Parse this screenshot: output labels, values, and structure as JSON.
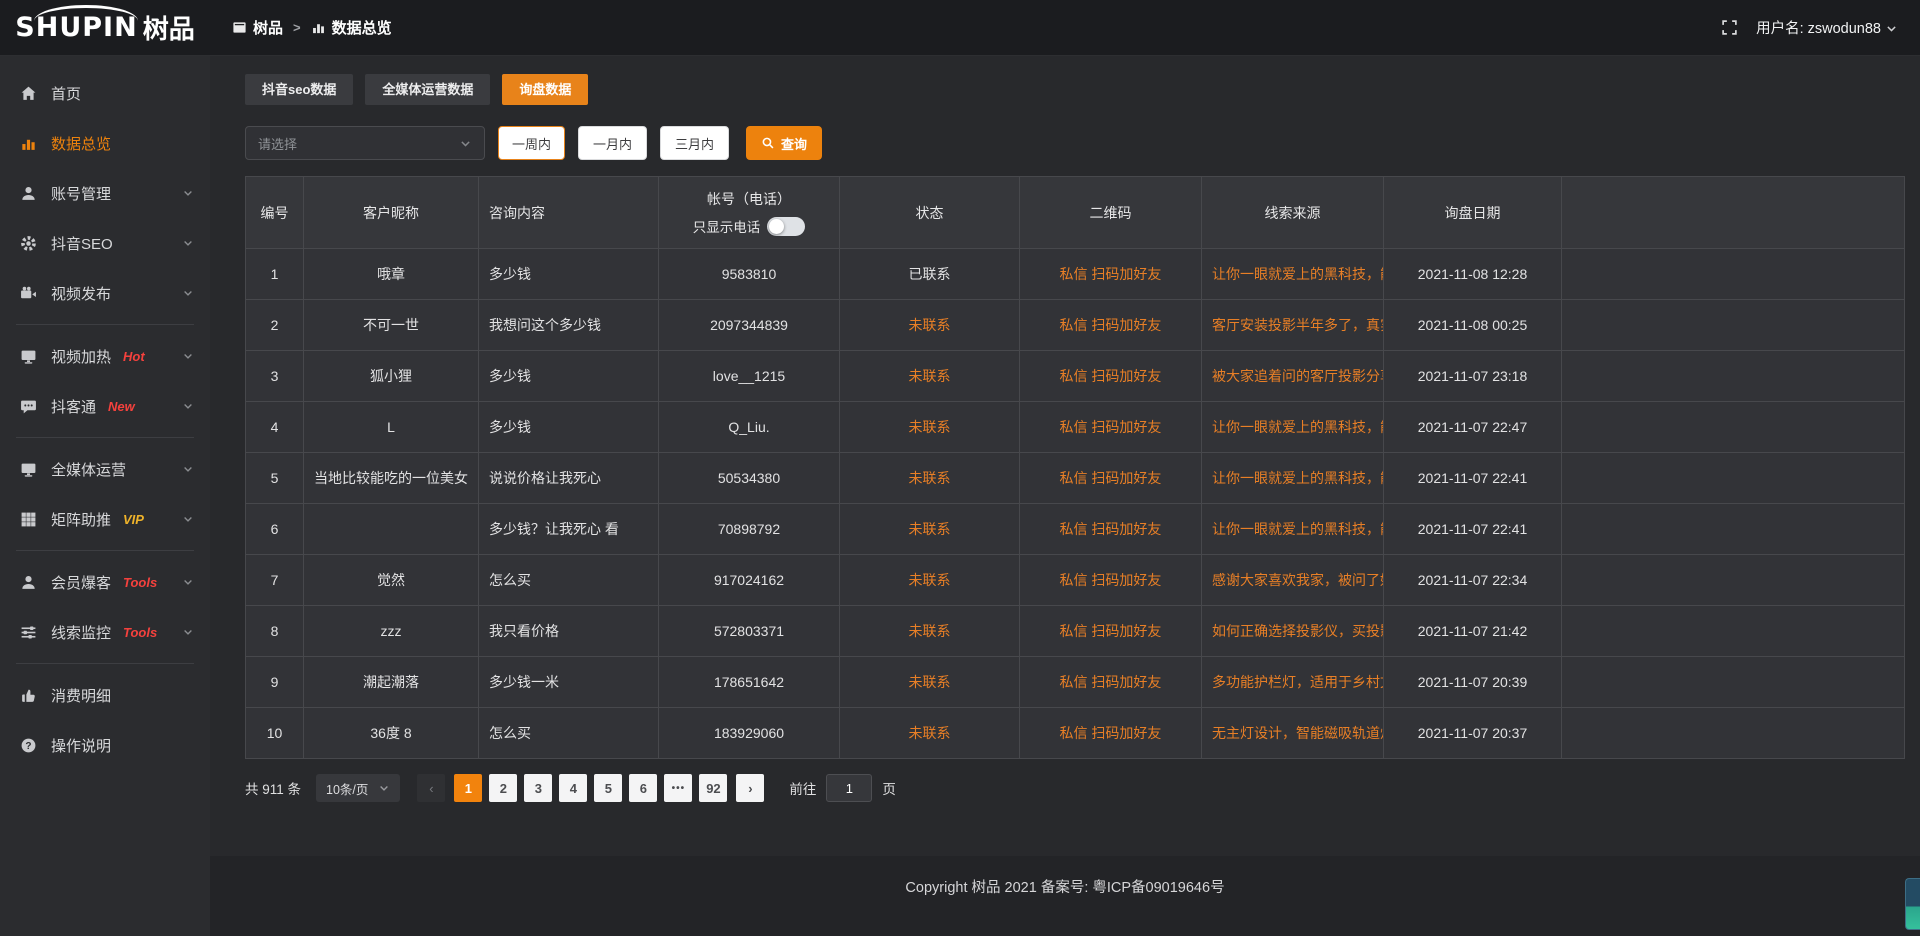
{
  "colors": {
    "accent_orange": "#ed820d",
    "tab_active_orange": "#e8831a",
    "link_orange": "#e87f26",
    "badge_red": "#f5413d",
    "badge_gold": "#efb32a",
    "page_bg": "#28292c",
    "topbar_bg": "#1b1c1f",
    "table_row_bg": "#323337"
  },
  "topbar": {
    "logo_en": "SHUPIN",
    "logo_cn": "树品",
    "breadcrumb": [
      {
        "label": "树品"
      },
      {
        "label": "数据总览"
      }
    ],
    "breadcrumb_separator": ">",
    "username": "用户名: zswodun88"
  },
  "sidebar": {
    "items": [
      {
        "label": "首页"
      },
      {
        "label": "数据总览"
      },
      {
        "label": "账号管理"
      },
      {
        "label": "抖音SEO"
      },
      {
        "label": "视频发布"
      },
      {
        "label": "视频加热",
        "badge": "Hot"
      },
      {
        "label": "抖客通",
        "badge": "New"
      },
      {
        "label": "全媒体运营"
      },
      {
        "label": "矩阵助推",
        "badge": "VIP"
      },
      {
        "label": "会员爆客",
        "badge": "Tools"
      },
      {
        "label": "线索监控",
        "badge": "Tools"
      },
      {
        "label": "消费明细"
      },
      {
        "label": "操作说明"
      }
    ]
  },
  "tabs": [
    {
      "label": "抖音seo数据"
    },
    {
      "label": "全媒体运营数据"
    },
    {
      "label": "询盘数据"
    }
  ],
  "filters": {
    "select_placeholder": "请选择",
    "periods": [
      "一周内",
      "一月内",
      "三月内"
    ],
    "search_label": "查询"
  },
  "table": {
    "headers": {
      "id": "编号",
      "nick": "客户昵称",
      "content": "咨询内容",
      "account": "帐号（电话）",
      "account_sub": "只显示电话",
      "status": "状态",
      "qr": "二维码",
      "source": "线索来源",
      "date": "询盘日期"
    },
    "contacted_value": "已联系",
    "rows": [
      {
        "id": "1",
        "nick": "哦章",
        "content": "多少钱",
        "account": "9583810",
        "status": "已联系",
        "qr": "私信 扫码加好友",
        "source": "让你一眼就爱上的黑科技，能...",
        "date": "2021-11-08 12:28"
      },
      {
        "id": "2",
        "nick": "不可一世",
        "content": "我想问这个多少钱",
        "account": "2097344839",
        "status": "未联系",
        "qr": "私信 扫码加好友",
        "source": "客厅安装投影半年多了，真实...",
        "date": "2021-11-08 00:25"
      },
      {
        "id": "3",
        "nick": "狐小狸",
        "content": "多少钱",
        "account": "love__1215",
        "status": "未联系",
        "qr": "私信 扫码加好友",
        "source": "被大家追着问的客厅投影分享...",
        "date": "2021-11-07 23:18"
      },
      {
        "id": "4",
        "nick": "L",
        "content": "多少钱",
        "account": "Q_Liu.",
        "status": "未联系",
        "qr": "私信 扫码加好友",
        "source": "让你一眼就爱上的黑科技，能...",
        "date": "2021-11-07 22:47"
      },
      {
        "id": "5",
        "nick": "当地比较能吃的一位美女",
        "content": "说说价格让我死心",
        "account": "50534380",
        "status": "未联系",
        "qr": "私信 扫码加好友",
        "source": "让你一眼就爱上的黑科技，能...",
        "date": "2021-11-07 22:41"
      },
      {
        "id": "6",
        "nick": "",
        "content": "多少钱？让我死心 看",
        "account": "70898792",
        "status": "未联系",
        "qr": "私信 扫码加好友",
        "source": "让你一眼就爱上的黑科技，能...",
        "date": "2021-11-07 22:41"
      },
      {
        "id": "7",
        "nick": "觉然",
        "content": "怎么买",
        "account": "917024162",
        "status": "未联系",
        "qr": "私信 扫码加好友",
        "source": "感谢大家喜欢我家，被问了好...",
        "date": "2021-11-07 22:34"
      },
      {
        "id": "8",
        "nick": "zzz",
        "content": "我只看价格",
        "account": "572803371",
        "status": "未联系",
        "qr": "私信 扫码加好友",
        "source": "如何正确选择投影仪，买投影...",
        "date": "2021-11-07 21:42"
      },
      {
        "id": "9",
        "nick": "潮起潮落",
        "content": "多少钱一米",
        "account": "178651642",
        "status": "未联系",
        "qr": "私信 扫码加好友",
        "source": "多功能护栏灯，适用于乡村文...",
        "date": "2021-11-07 20:39"
      },
      {
        "id": "10",
        "nick": "36度 8",
        "content": "怎么买",
        "account": "183929060",
        "status": "未联系",
        "qr": "私信 扫码加好友",
        "source": "无主灯设计，智能磁吸轨道灯...",
        "date": "2021-11-07 20:37"
      }
    ]
  },
  "pagination": {
    "total": "共 911 条",
    "page_size": "10条/页",
    "pages": [
      "1",
      "2",
      "3",
      "4",
      "5",
      "6",
      "•••",
      "92"
    ],
    "active_page": "1",
    "more_symbol": "•••",
    "prev_symbol": "‹",
    "next_symbol": "›",
    "goto_label": "前往",
    "goto_value": "1",
    "goto_suffix": "页"
  },
  "footer": {
    "copyright": "Copyright 树品 2021 备案号: 粤ICP备09019646号"
  }
}
